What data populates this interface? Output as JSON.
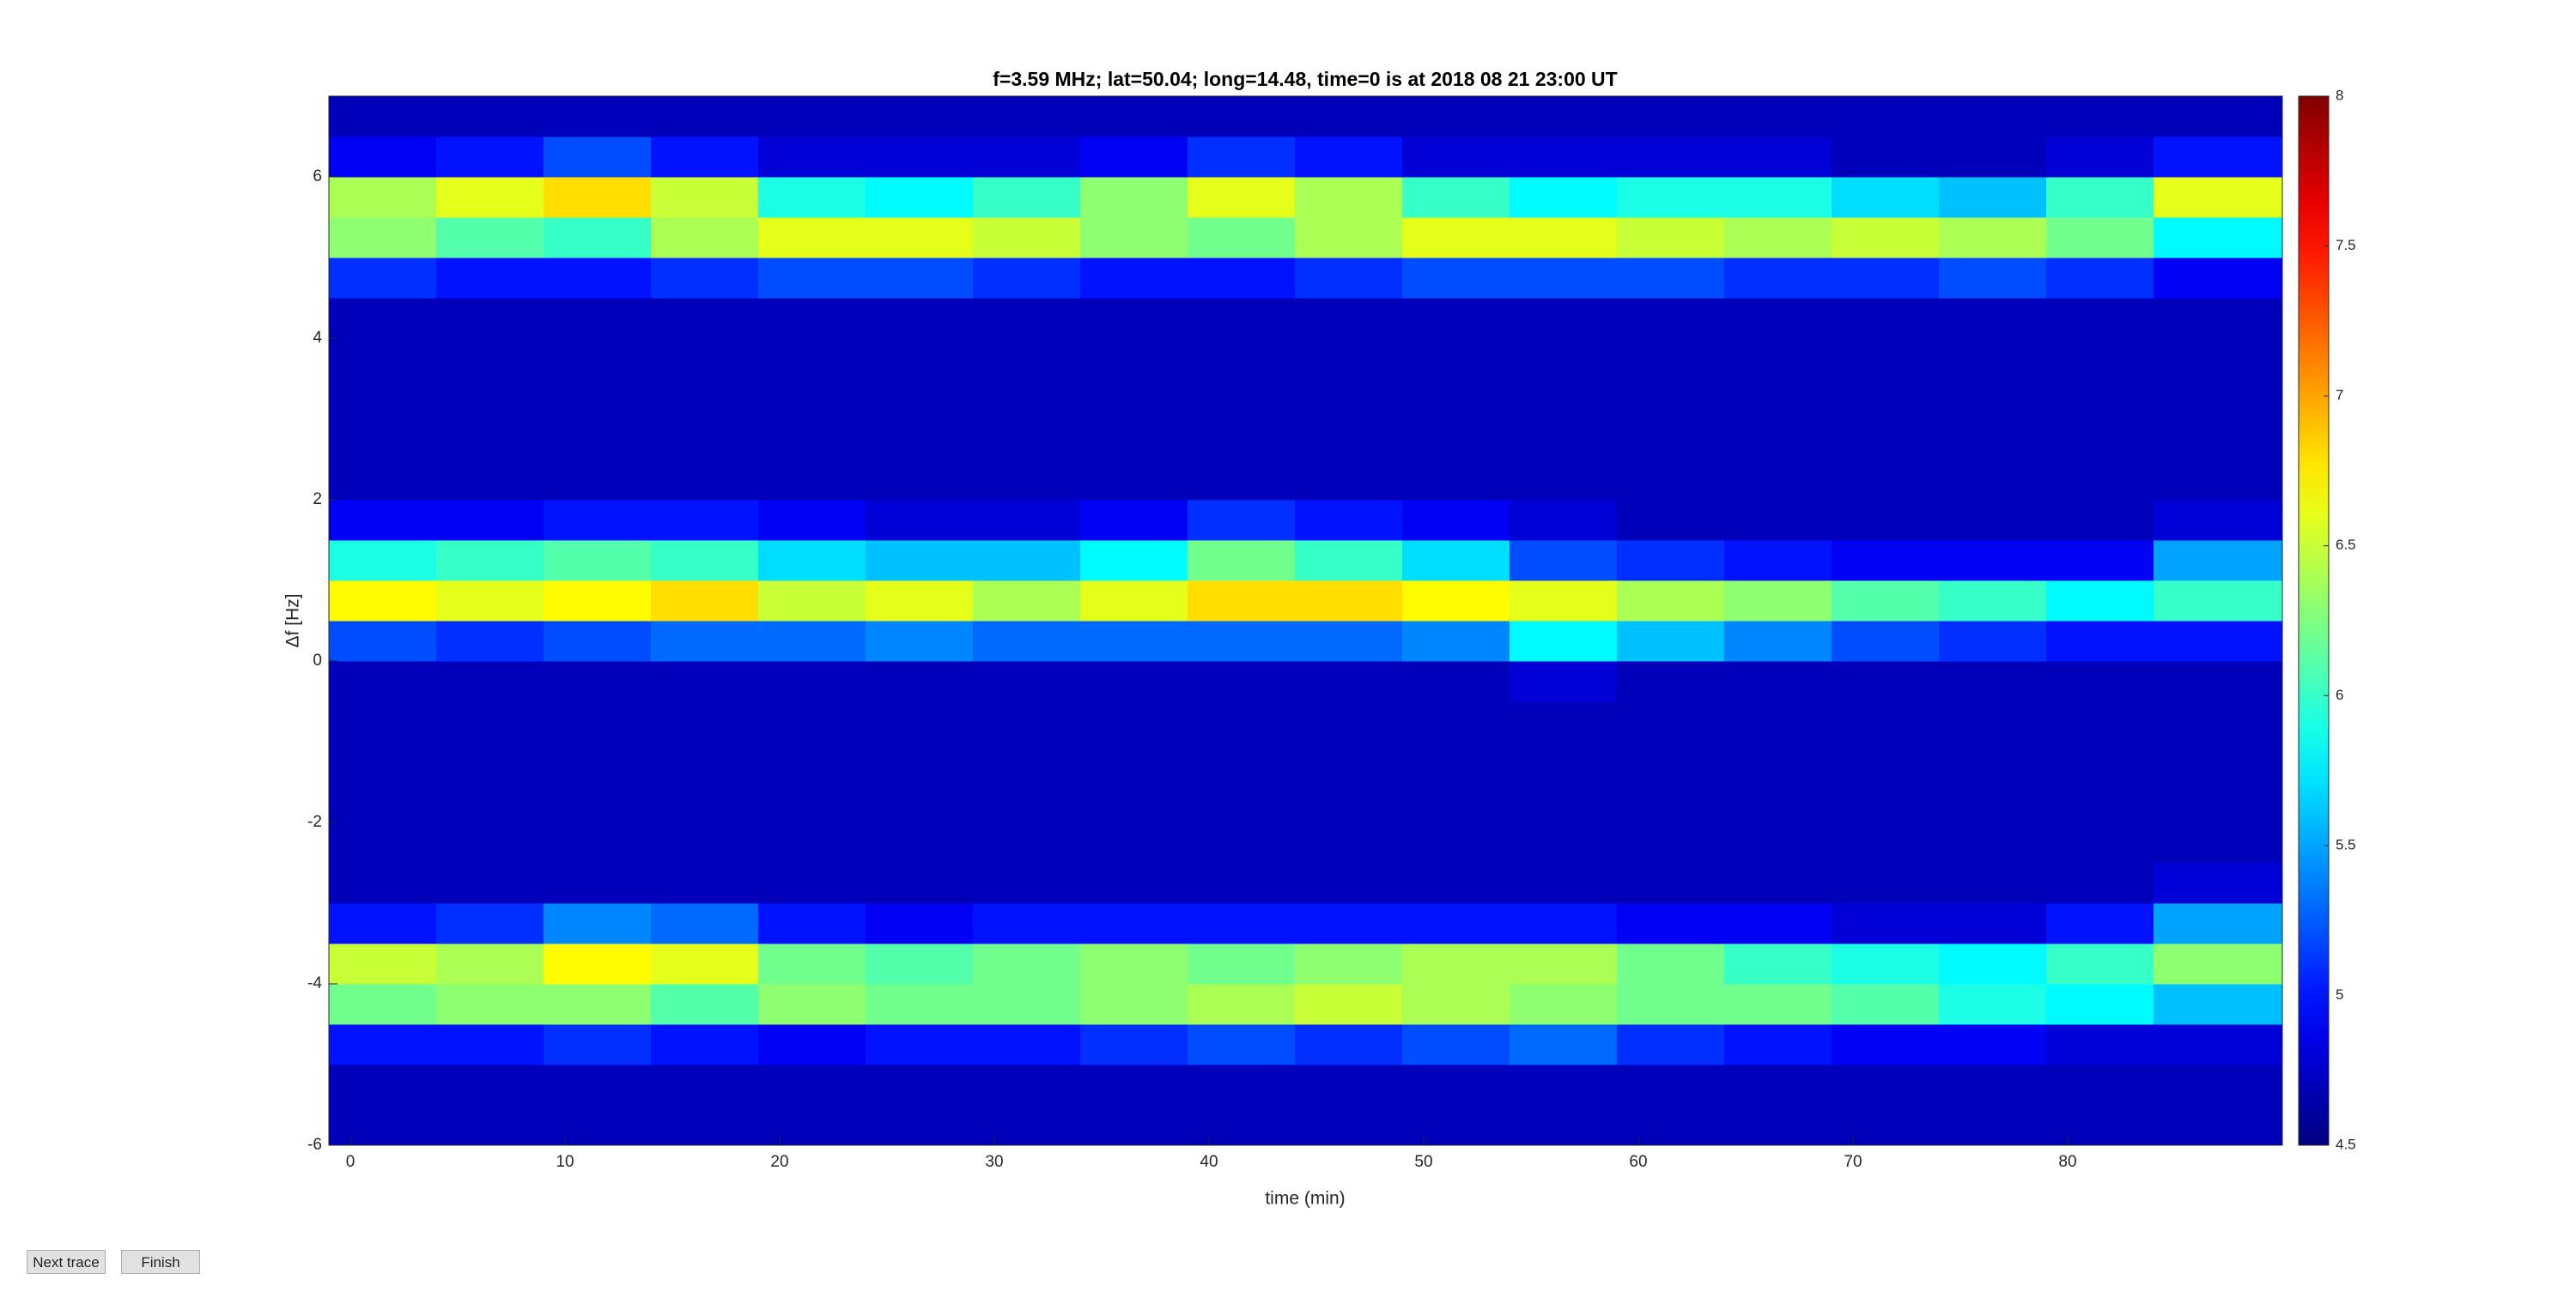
{
  "chart_data": {
    "type": "heatmap",
    "title": "f=3.59 MHz;  lat=50.04; long=14.48, time=0 is at 2018 08 21 23:00 UT",
    "xlabel": "time (min)",
    "ylabel": "Δf [Hz]",
    "colormap": "jet",
    "xlim": [
      -1,
      90
    ],
    "xticks": [
      0,
      10,
      20,
      30,
      40,
      50,
      60,
      70,
      80
    ],
    "ylim": [
      -6,
      7
    ],
    "yticks": [
      -6,
      -4,
      -2,
      0,
      2,
      4,
      6
    ],
    "clim": [
      4.5,
      8
    ],
    "cticks": [
      4.5,
      5,
      5.5,
      6,
      6.5,
      7,
      7.5,
      8
    ],
    "x": [
      1.5,
      6.5,
      11.5,
      16.5,
      21.5,
      26.5,
      31.5,
      36.5,
      41.5,
      46.5,
      51.5,
      56.5,
      61.5,
      66.5,
      71.5,
      76.5,
      81.5,
      86.5
    ],
    "y": [
      -5.75,
      -5.25,
      -4.75,
      -4.25,
      -3.75,
      -3.25,
      -2.75,
      -2.25,
      -1.75,
      -1.25,
      -0.75,
      -0.25,
      0.25,
      0.75,
      1.25,
      1.75,
      2.25,
      2.75,
      3.25,
      3.75,
      4.25,
      4.75,
      5.25,
      5.75,
      6.25,
      6.75
    ],
    "z": [
      [
        4.7,
        4.7,
        4.7,
        4.7,
        4.7,
        4.7,
        4.7,
        4.7,
        4.7,
        4.7,
        4.7,
        4.7,
        4.7,
        4.7,
        4.7,
        4.7,
        4.7,
        4.7
      ],
      [
        4.7,
        4.7,
        4.7,
        4.7,
        4.7,
        4.7,
        4.7,
        4.7,
        4.7,
        4.7,
        4.7,
        4.7,
        4.7,
        4.7,
        4.7,
        4.7,
        4.7,
        4.7
      ],
      [
        5.0,
        5.0,
        5.1,
        5.0,
        4.9,
        5.0,
        5.0,
        5.1,
        5.2,
        5.1,
        5.2,
        5.3,
        5.1,
        5.0,
        4.9,
        4.9,
        4.8,
        4.8
      ],
      [
        6.2,
        6.3,
        6.3,
        6.1,
        6.3,
        6.2,
        6.2,
        6.3,
        6.4,
        6.5,
        6.4,
        6.3,
        6.2,
        6.2,
        6.1,
        5.9,
        5.8,
        5.6
      ],
      [
        6.5,
        6.4,
        6.7,
        6.6,
        6.2,
        6.1,
        6.2,
        6.3,
        6.2,
        6.3,
        6.4,
        6.4,
        6.2,
        6.0,
        5.9,
        5.8,
        6.0,
        6.3
      ],
      [
        5.0,
        5.1,
        5.4,
        5.3,
        5.0,
        4.9,
        5.0,
        5.0,
        5.0,
        5.0,
        5.0,
        5.0,
        4.9,
        4.9,
        4.8,
        4.8,
        5.0,
        5.5
      ],
      [
        4.7,
        4.7,
        4.7,
        4.7,
        4.7,
        4.7,
        4.7,
        4.7,
        4.7,
        4.7,
        4.7,
        4.7,
        4.7,
        4.7,
        4.7,
        4.7,
        4.7,
        4.8
      ],
      [
        4.7,
        4.7,
        4.7,
        4.7,
        4.7,
        4.7,
        4.7,
        4.7,
        4.7,
        4.7,
        4.7,
        4.7,
        4.7,
        4.7,
        4.7,
        4.7,
        4.7,
        4.7
      ],
      [
        4.7,
        4.7,
        4.7,
        4.7,
        4.7,
        4.7,
        4.7,
        4.7,
        4.7,
        4.7,
        4.7,
        4.7,
        4.7,
        4.7,
        4.7,
        4.7,
        4.7,
        4.7
      ],
      [
        4.7,
        4.7,
        4.7,
        4.7,
        4.7,
        4.7,
        4.7,
        4.7,
        4.7,
        4.7,
        4.7,
        4.7,
        4.7,
        4.7,
        4.7,
        4.7,
        4.7,
        4.7
      ],
      [
        4.7,
        4.7,
        4.7,
        4.7,
        4.7,
        4.7,
        4.7,
        4.7,
        4.7,
        4.7,
        4.7,
        4.7,
        4.7,
        4.7,
        4.7,
        4.7,
        4.7,
        4.7
      ],
      [
        4.7,
        4.7,
        4.7,
        4.7,
        4.7,
        4.7,
        4.7,
        4.7,
        4.7,
        4.7,
        4.7,
        4.8,
        4.7,
        4.7,
        4.7,
        4.7,
        4.7,
        4.7
      ],
      [
        5.2,
        5.1,
        5.2,
        5.3,
        5.3,
        5.4,
        5.3,
        5.3,
        5.3,
        5.3,
        5.4,
        5.8,
        5.6,
        5.4,
        5.2,
        5.1,
        5.0,
        5.0
      ],
      [
        6.7,
        6.6,
        6.7,
        6.8,
        6.5,
        6.6,
        6.4,
        6.6,
        6.8,
        6.8,
        6.7,
        6.6,
        6.4,
        6.3,
        6.1,
        6.0,
        5.8,
        6.0
      ],
      [
        5.9,
        6.0,
        6.1,
        6.0,
        5.7,
        5.6,
        5.6,
        5.8,
        6.2,
        6.0,
        5.7,
        5.2,
        5.1,
        5.0,
        4.9,
        4.9,
        4.9,
        5.5
      ],
      [
        4.9,
        4.9,
        5.0,
        5.0,
        4.9,
        4.8,
        4.8,
        4.9,
        5.1,
        5.0,
        4.9,
        4.8,
        4.7,
        4.7,
        4.7,
        4.7,
        4.7,
        4.8
      ],
      [
        4.7,
        4.7,
        4.7,
        4.7,
        4.7,
        4.7,
        4.7,
        4.7,
        4.7,
        4.7,
        4.7,
        4.7,
        4.7,
        4.7,
        4.7,
        4.7,
        4.7,
        4.7
      ],
      [
        4.7,
        4.7,
        4.7,
        4.7,
        4.7,
        4.7,
        4.7,
        4.7,
        4.7,
        4.7,
        4.7,
        4.7,
        4.7,
        4.7,
        4.7,
        4.7,
        4.7,
        4.7
      ],
      [
        4.7,
        4.7,
        4.7,
        4.7,
        4.7,
        4.7,
        4.7,
        4.7,
        4.7,
        4.7,
        4.7,
        4.7,
        4.7,
        4.7,
        4.7,
        4.7,
        4.7,
        4.7
      ],
      [
        4.7,
        4.7,
        4.7,
        4.7,
        4.7,
        4.7,
        4.7,
        4.7,
        4.7,
        4.7,
        4.7,
        4.7,
        4.7,
        4.7,
        4.7,
        4.7,
        4.7,
        4.7
      ],
      [
        4.7,
        4.7,
        4.7,
        4.7,
        4.7,
        4.7,
        4.7,
        4.7,
        4.7,
        4.7,
        4.7,
        4.7,
        4.7,
        4.7,
        4.7,
        4.7,
        4.7,
        4.7
      ],
      [
        5.1,
        5.0,
        5.0,
        5.1,
        5.2,
        5.2,
        5.1,
        5.0,
        5.0,
        5.1,
        5.2,
        5.2,
        5.2,
        5.1,
        5.1,
        5.2,
        5.1,
        4.9
      ],
      [
        6.3,
        6.1,
        6.0,
        6.4,
        6.6,
        6.6,
        6.5,
        6.3,
        6.2,
        6.4,
        6.6,
        6.6,
        6.5,
        6.4,
        6.5,
        6.4,
        6.2,
        5.8
      ],
      [
        6.4,
        6.6,
        6.8,
        6.5,
        5.9,
        5.8,
        6.0,
        6.3,
        6.6,
        6.4,
        6.0,
        5.8,
        5.9,
        5.9,
        5.7,
        5.6,
        6.0,
        6.6
      ],
      [
        4.9,
        5.0,
        5.2,
        5.0,
        4.8,
        4.8,
        4.8,
        4.9,
        5.1,
        5.0,
        4.8,
        4.8,
        4.8,
        4.8,
        4.7,
        4.7,
        4.8,
        5.0
      ],
      [
        4.7,
        4.7,
        4.7,
        4.7,
        4.7,
        4.7,
        4.7,
        4.7,
        4.7,
        4.7,
        4.7,
        4.7,
        4.7,
        4.7,
        4.7,
        4.7,
        4.7,
        4.7
      ]
    ]
  },
  "buttons": [
    "Next trace",
    "Finish"
  ]
}
